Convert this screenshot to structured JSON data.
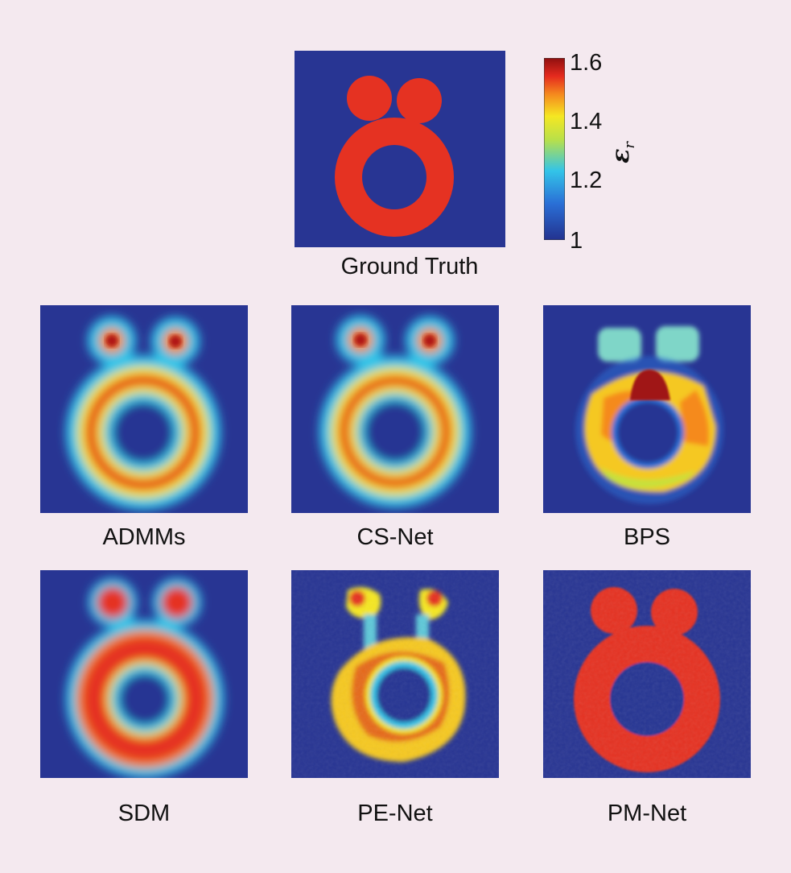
{
  "figure": {
    "panels": [
      {
        "id": "ground-truth",
        "caption": "Ground Truth"
      },
      {
        "id": "admms",
        "caption": "ADMMs"
      },
      {
        "id": "cs-net",
        "caption": "CS-Net"
      },
      {
        "id": "bps",
        "caption": "BPS"
      },
      {
        "id": "sdm",
        "caption": "SDM"
      },
      {
        "id": "pe-net",
        "caption": "PE-Net"
      },
      {
        "id": "pm-net",
        "caption": "PM-Net"
      }
    ],
    "colorbar": {
      "label_symbol": "ε",
      "label_subscript": "r",
      "ticks": [
        "1.6",
        "1.4",
        "1.2",
        "1"
      ],
      "range": [
        1,
        1.6
      ]
    },
    "colors": {
      "background_map": "#283593",
      "object_red": "#e53222",
      "dark_red": "#9b1010"
    }
  }
}
